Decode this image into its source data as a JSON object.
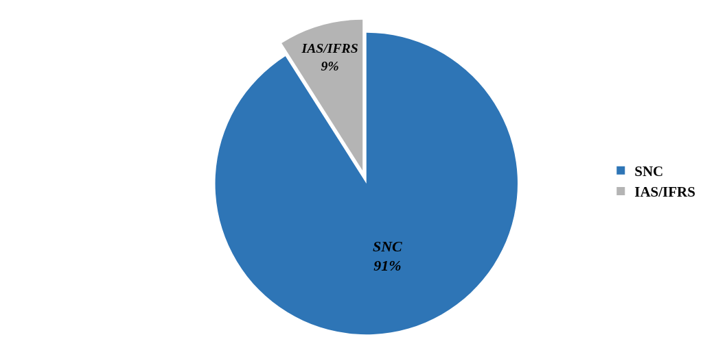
{
  "chart_data": {
    "type": "pie",
    "categories": [
      "SNC",
      "IAS/IFRS"
    ],
    "values": [
      91,
      9
    ],
    "colors": [
      "#2e75b6",
      "#b4b4b4"
    ],
    "value_labels": [
      "SNC\n91%",
      "IAS/IFRS\n9%"
    ],
    "legend": "right"
  }
}
